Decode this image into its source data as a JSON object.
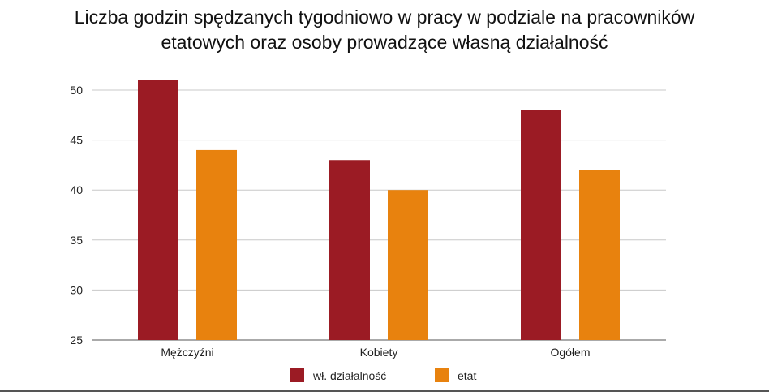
{
  "chart_data": {
    "type": "bar",
    "title_lines": [
      "Liczba godzin spędzanych tygodniowo w pracy w podziale na pracowników",
      "etatowych oraz osoby prowadzące własną działalność"
    ],
    "categories": [
      "Mężczyźni",
      "Kobiety",
      "Ogółem"
    ],
    "series": [
      {
        "name": "wł. działalność",
        "color": "#9b1b24",
        "values": [
          51,
          43,
          48
        ]
      },
      {
        "name": "etat",
        "color": "#e8820e",
        "values": [
          44,
          40,
          42
        ]
      }
    ],
    "ylim": [
      25,
      50
    ],
    "yticks": [
      25,
      30,
      35,
      40,
      45,
      50
    ],
    "grid": true,
    "legend_position": "bottom"
  }
}
